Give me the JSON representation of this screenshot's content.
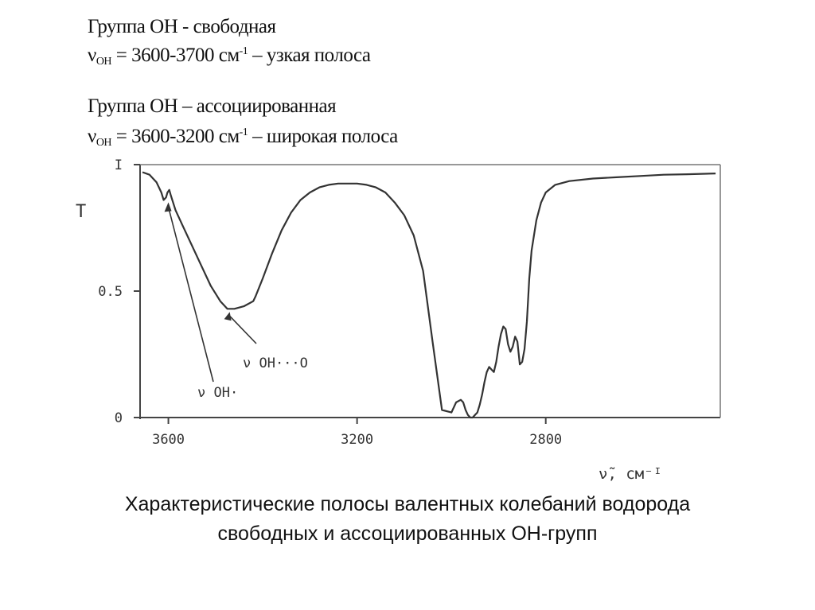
{
  "header": {
    "free": {
      "text": "Группа ОН - свободная"
    },
    "free_formula": {
      "nu": "ν",
      "sub": "OH",
      "eq": " = 3600-3700  см",
      "sup": "-1",
      "tail": " – узкая полоса"
    },
    "assoc": {
      "text": "Группа ОН – ассоциированная"
    },
    "assoc_formula": {
      "nu": "ν",
      "sub": "OH",
      "eq": " = 3600-3200 см",
      "sup": "-1",
      "tail": " – широкая полоса"
    }
  },
  "caption": {
    "line1": "Характеристические полосы валентных колебаний водорода",
    "line2": "свободных и ассоциированных ОН-групп"
  },
  "chart_data": {
    "type": "line",
    "title": "",
    "xlabel": "ν̃, см⁻ᴵ",
    "ylabel": "T",
    "x_reversed": true,
    "xlim": [
      3660,
      2430
    ],
    "ylim": [
      0,
      1.0
    ],
    "xticks": [
      {
        "v": 3600,
        "label": "3600"
      },
      {
        "v": 3200,
        "label": "3200"
      },
      {
        "v": 2800,
        "label": "2800"
      }
    ],
    "yticks": [
      {
        "v": 0,
        "label": "0"
      },
      {
        "v": 0.5,
        "label": "0.5"
      },
      {
        "v": 1.0,
        "label": "I"
      }
    ],
    "grid": false,
    "annotations": [
      {
        "text": "ν OH·",
        "x": 3600,
        "y": 0.87
      },
      {
        "text": "ν OH···O",
        "x": 3475,
        "y": 0.43
      }
    ],
    "series": [
      {
        "x": [
          3655,
          3640,
          3625,
          3615,
          3610,
          3605,
          3602,
          3598,
          3595,
          3590,
          3585,
          3570,
          3550,
          3530,
          3510,
          3490,
          3475,
          3460,
          3440,
          3420,
          3415,
          3400,
          3380,
          3360,
          3340,
          3320,
          3300,
          3280,
          3260,
          3240,
          3220,
          3200,
          3180,
          3160,
          3140,
          3120,
          3100,
          3080,
          3060,
          3040,
          3020,
          3000,
          2990,
          2980,
          2975,
          2970,
          2965,
          2960,
          2955,
          2950,
          2945,
          2940,
          2935,
          2930,
          2925,
          2920,
          2915,
          2910,
          2905,
          2900,
          2895,
          2890,
          2885,
          2880,
          2875,
          2870,
          2865,
          2860,
          2855,
          2850,
          2845,
          2840,
          2835,
          2830,
          2820,
          2810,
          2800,
          2780,
          2750,
          2700,
          2650,
          2600,
          2550,
          2500,
          2440
        ],
        "y": [
          0.97,
          0.96,
          0.93,
          0.89,
          0.86,
          0.87,
          0.89,
          0.9,
          0.88,
          0.85,
          0.82,
          0.76,
          0.68,
          0.6,
          0.52,
          0.46,
          0.43,
          0.43,
          0.44,
          0.46,
          0.48,
          0.55,
          0.65,
          0.74,
          0.81,
          0.86,
          0.89,
          0.91,
          0.92,
          0.925,
          0.925,
          0.925,
          0.92,
          0.91,
          0.89,
          0.85,
          0.8,
          0.72,
          0.58,
          0.3,
          0.03,
          0.02,
          0.06,
          0.07,
          0.06,
          0.03,
          0.01,
          0.0,
          0.0,
          0.01,
          0.02,
          0.05,
          0.09,
          0.14,
          0.18,
          0.2,
          0.19,
          0.18,
          0.22,
          0.28,
          0.33,
          0.36,
          0.35,
          0.29,
          0.26,
          0.28,
          0.32,
          0.3,
          0.21,
          0.22,
          0.27,
          0.38,
          0.55,
          0.66,
          0.78,
          0.85,
          0.89,
          0.92,
          0.935,
          0.945,
          0.95,
          0.955,
          0.96,
          0.962,
          0.965
        ]
      }
    ]
  }
}
